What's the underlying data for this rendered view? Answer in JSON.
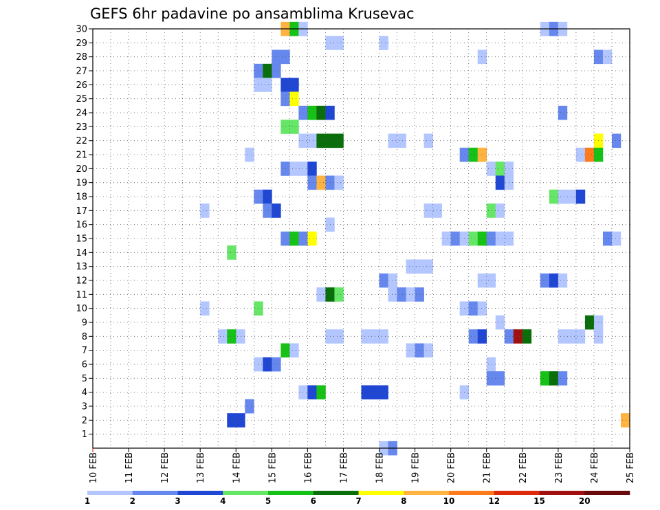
{
  "chart_data": {
    "type": "heatmap",
    "title": "GEFS 6hr padavine po ansamblima Krusevac",
    "xlabel": "",
    "ylabel": "",
    "x_ticks": [
      "10 FEB",
      "11 FEB",
      "12 FEB",
      "13 FEB",
      "14 FEB",
      "15 FEB",
      "16 FEB",
      "17 FEB",
      "18 FEB",
      "19 FEB",
      "20 FEB",
      "21 FEB",
      "22 FEB",
      "23 FEB",
      "24 FEB",
      "25 FEB"
    ],
    "x_start_day": 10,
    "x_end_day": 25,
    "y_ticks": [
      1,
      2,
      3,
      4,
      5,
      6,
      7,
      8,
      9,
      10,
      11,
      12,
      13,
      14,
      15,
      16,
      17,
      18,
      19,
      20,
      21,
      22,
      23,
      24,
      25,
      26,
      27,
      28,
      29,
      30
    ],
    "ylim": [
      0,
      30
    ],
    "grid": "dotted",
    "step_hours": 6,
    "legend": {
      "position": "bottom",
      "colors": [
        "#b3c6ff",
        "#6688ee",
        "#1f47d4",
        "#66e666",
        "#17c217",
        "#0a6e0a",
        "#ffff00",
        "#ffb340",
        "#ff7a1a",
        "#dd2a0a",
        "#a11010",
        "#6b0a0a"
      ],
      "labels": [
        "1",
        "2",
        "3",
        "4",
        "5",
        "6",
        "7",
        "8",
        "10",
        "12",
        "15",
        "20"
      ]
    },
    "cells": [
      {
        "member": 30,
        "day": 15.25,
        "level": 8
      },
      {
        "member": 30,
        "day": 15.5,
        "level": 5
      },
      {
        "member": 30,
        "day": 15.75,
        "level": 1
      },
      {
        "member": 30,
        "day": 22.5,
        "level": 1
      },
      {
        "member": 30,
        "day": 22.75,
        "level": 2
      },
      {
        "member": 30,
        "day": 23.0,
        "level": 1
      },
      {
        "member": 29,
        "day": 16.5,
        "level": 1
      },
      {
        "member": 29,
        "day": 16.75,
        "level": 1
      },
      {
        "member": 29,
        "day": 18.0,
        "level": 1
      },
      {
        "member": 28,
        "day": 15.0,
        "level": 2
      },
      {
        "member": 28,
        "day": 15.25,
        "level": 2
      },
      {
        "member": 28,
        "day": 20.75,
        "level": 1
      },
      {
        "member": 28,
        "day": 24.0,
        "level": 2
      },
      {
        "member": 28,
        "day": 24.25,
        "level": 1
      },
      {
        "member": 27,
        "day": 14.5,
        "level": 2
      },
      {
        "member": 27,
        "day": 14.75,
        "level": 6
      },
      {
        "member": 27,
        "day": 15.0,
        "level": 2
      },
      {
        "member": 26,
        "day": 14.5,
        "level": 1
      },
      {
        "member": 26,
        "day": 14.75,
        "level": 1
      },
      {
        "member": 26,
        "day": 15.25,
        "level": 3
      },
      {
        "member": 26,
        "day": 15.5,
        "level": 3
      },
      {
        "member": 25,
        "day": 15.25,
        "level": 2
      },
      {
        "member": 25,
        "day": 15.5,
        "level": 7
      },
      {
        "member": 24,
        "day": 15.75,
        "level": 2
      },
      {
        "member": 24,
        "day": 16.0,
        "level": 5
      },
      {
        "member": 24,
        "day": 16.25,
        "level": 6
      },
      {
        "member": 24,
        "day": 16.5,
        "level": 3
      },
      {
        "member": 24,
        "day": 23.0,
        "level": 2
      },
      {
        "member": 23,
        "day": 15.25,
        "level": 4
      },
      {
        "member": 23,
        "day": 15.5,
        "level": 4
      },
      {
        "member": 22,
        "day": 15.75,
        "level": 1
      },
      {
        "member": 22,
        "day": 16.0,
        "level": 1
      },
      {
        "member": 22,
        "day": 16.25,
        "level": 6
      },
      {
        "member": 22,
        "day": 16.5,
        "level": 6
      },
      {
        "member": 22,
        "day": 16.75,
        "level": 6
      },
      {
        "member": 22,
        "day": 18.25,
        "level": 1
      },
      {
        "member": 22,
        "day": 18.5,
        "level": 1
      },
      {
        "member": 22,
        "day": 19.25,
        "level": 1
      },
      {
        "member": 22,
        "day": 24.0,
        "level": 7
      },
      {
        "member": 22,
        "day": 24.5,
        "level": 2
      },
      {
        "member": 21,
        "day": 14.25,
        "level": 1
      },
      {
        "member": 21,
        "day": 20.25,
        "level": 2
      },
      {
        "member": 21,
        "day": 20.5,
        "level": 5
      },
      {
        "member": 21,
        "day": 20.75,
        "level": 8
      },
      {
        "member": 21,
        "day": 23.5,
        "level": 1
      },
      {
        "member": 21,
        "day": 23.75,
        "level": 9
      },
      {
        "member": 21,
        "day": 24.0,
        "level": 5
      },
      {
        "member": 20,
        "day": 15.25,
        "level": 2
      },
      {
        "member": 20,
        "day": 15.5,
        "level": 1
      },
      {
        "member": 20,
        "day": 15.75,
        "level": 1
      },
      {
        "member": 20,
        "day": 16.0,
        "level": 3
      },
      {
        "member": 20,
        "day": 21.0,
        "level": 1
      },
      {
        "member": 20,
        "day": 21.25,
        "level": 4
      },
      {
        "member": 20,
        "day": 21.5,
        "level": 1
      },
      {
        "member": 19,
        "day": 16.0,
        "level": 2
      },
      {
        "member": 19,
        "day": 16.25,
        "level": 8
      },
      {
        "member": 19,
        "day": 16.5,
        "level": 2
      },
      {
        "member": 19,
        "day": 16.75,
        "level": 1
      },
      {
        "member": 19,
        "day": 21.25,
        "level": 3
      },
      {
        "member": 19,
        "day": 21.5,
        "level": 1
      },
      {
        "member": 18,
        "day": 14.5,
        "level": 2
      },
      {
        "member": 18,
        "day": 14.75,
        "level": 3
      },
      {
        "member": 18,
        "day": 22.75,
        "level": 4
      },
      {
        "member": 18,
        "day": 23.0,
        "level": 1
      },
      {
        "member": 18,
        "day": 23.25,
        "level": 1
      },
      {
        "member": 18,
        "day": 23.5,
        "level": 3
      },
      {
        "member": 17,
        "day": 13.0,
        "level": 1
      },
      {
        "member": 17,
        "day": 14.75,
        "level": 2
      },
      {
        "member": 17,
        "day": 15.0,
        "level": 3
      },
      {
        "member": 17,
        "day": 19.25,
        "level": 1
      },
      {
        "member": 17,
        "day": 19.5,
        "level": 1
      },
      {
        "member": 17,
        "day": 21.0,
        "level": 4
      },
      {
        "member": 17,
        "day": 21.25,
        "level": 1
      },
      {
        "member": 16,
        "day": 16.5,
        "level": 1
      },
      {
        "member": 15,
        "day": 15.25,
        "level": 2
      },
      {
        "member": 15,
        "day": 15.5,
        "level": 5
      },
      {
        "member": 15,
        "day": 15.75,
        "level": 2
      },
      {
        "member": 15,
        "day": 16.0,
        "level": 7
      },
      {
        "member": 15,
        "day": 19.75,
        "level": 1
      },
      {
        "member": 15,
        "day": 20.0,
        "level": 2
      },
      {
        "member": 15,
        "day": 20.25,
        "level": 1
      },
      {
        "member": 15,
        "day": 20.5,
        "level": 4
      },
      {
        "member": 15,
        "day": 20.75,
        "level": 5
      },
      {
        "member": 15,
        "day": 21.0,
        "level": 2
      },
      {
        "member": 15,
        "day": 21.25,
        "level": 1
      },
      {
        "member": 15,
        "day": 21.5,
        "level": 1
      },
      {
        "member": 15,
        "day": 24.25,
        "level": 2
      },
      {
        "member": 15,
        "day": 24.5,
        "level": 1
      },
      {
        "member": 14,
        "day": 13.75,
        "level": 4
      },
      {
        "member": 13,
        "day": 18.75,
        "level": 1
      },
      {
        "member": 13,
        "day": 19.0,
        "level": 1
      },
      {
        "member": 13,
        "day": 19.25,
        "level": 1
      },
      {
        "member": 12,
        "day": 18.0,
        "level": 2
      },
      {
        "member": 12,
        "day": 18.25,
        "level": 1
      },
      {
        "member": 12,
        "day": 20.75,
        "level": 1
      },
      {
        "member": 12,
        "day": 21.0,
        "level": 1
      },
      {
        "member": 12,
        "day": 22.5,
        "level": 2
      },
      {
        "member": 12,
        "day": 22.75,
        "level": 3
      },
      {
        "member": 12,
        "day": 23.0,
        "level": 1
      },
      {
        "member": 11,
        "day": 16.25,
        "level": 1
      },
      {
        "member": 11,
        "day": 16.5,
        "level": 6
      },
      {
        "member": 11,
        "day": 16.75,
        "level": 4
      },
      {
        "member": 11,
        "day": 18.25,
        "level": 1
      },
      {
        "member": 11,
        "day": 18.5,
        "level": 2
      },
      {
        "member": 11,
        "day": 18.75,
        "level": 1
      },
      {
        "member": 11,
        "day": 19.0,
        "level": 2
      },
      {
        "member": 10,
        "day": 13.0,
        "level": 1
      },
      {
        "member": 10,
        "day": 14.5,
        "level": 4
      },
      {
        "member": 10,
        "day": 20.25,
        "level": 1
      },
      {
        "member": 10,
        "day": 20.5,
        "level": 2
      },
      {
        "member": 10,
        "day": 20.75,
        "level": 1
      },
      {
        "member": 9,
        "day": 21.25,
        "level": 1
      },
      {
        "member": 9,
        "day": 23.75,
        "level": 6
      },
      {
        "member": 9,
        "day": 24.0,
        "level": 1
      },
      {
        "member": 8,
        "day": 13.5,
        "level": 1
      },
      {
        "member": 8,
        "day": 13.75,
        "level": 5
      },
      {
        "member": 8,
        "day": 14.0,
        "level": 1
      },
      {
        "member": 8,
        "day": 16.5,
        "level": 1
      },
      {
        "member": 8,
        "day": 16.75,
        "level": 1
      },
      {
        "member": 8,
        "day": 17.5,
        "level": 1
      },
      {
        "member": 8,
        "day": 17.75,
        "level": 1
      },
      {
        "member": 8,
        "day": 18.0,
        "level": 1
      },
      {
        "member": 8,
        "day": 20.5,
        "level": 2
      },
      {
        "member": 8,
        "day": 20.75,
        "level": 3
      },
      {
        "member": 8,
        "day": 21.5,
        "level": 2
      },
      {
        "member": 8,
        "day": 21.75,
        "level": 11
      },
      {
        "member": 8,
        "day": 22.0,
        "level": 6
      },
      {
        "member": 8,
        "day": 23.0,
        "level": 1
      },
      {
        "member": 8,
        "day": 23.25,
        "level": 1
      },
      {
        "member": 8,
        "day": 23.5,
        "level": 1
      },
      {
        "member": 8,
        "day": 24.0,
        "level": 1
      },
      {
        "member": 7,
        "day": 15.25,
        "level": 5
      },
      {
        "member": 7,
        "day": 15.5,
        "level": 1
      },
      {
        "member": 7,
        "day": 18.75,
        "level": 1
      },
      {
        "member": 7,
        "day": 19.0,
        "level": 2
      },
      {
        "member": 7,
        "day": 19.25,
        "level": 1
      },
      {
        "member": 6,
        "day": 14.5,
        "level": 1
      },
      {
        "member": 6,
        "day": 14.75,
        "level": 3
      },
      {
        "member": 6,
        "day": 15.0,
        "level": 2
      },
      {
        "member": 6,
        "day": 21.0,
        "level": 1
      },
      {
        "member": 5,
        "day": 21.0,
        "level": 2
      },
      {
        "member": 5,
        "day": 21.25,
        "level": 2
      },
      {
        "member": 5,
        "day": 22.5,
        "level": 5
      },
      {
        "member": 5,
        "day": 22.75,
        "level": 6
      },
      {
        "member": 5,
        "day": 23.0,
        "level": 2
      },
      {
        "member": 4,
        "day": 15.75,
        "level": 1
      },
      {
        "member": 4,
        "day": 16.0,
        "level": 3
      },
      {
        "member": 4,
        "day": 16.25,
        "level": 5
      },
      {
        "member": 4,
        "day": 17.5,
        "level": 3
      },
      {
        "member": 4,
        "day": 17.75,
        "level": 3
      },
      {
        "member": 4,
        "day": 18.0,
        "level": 3
      },
      {
        "member": 4,
        "day": 20.25,
        "level": 1
      },
      {
        "member": 3,
        "day": 14.25,
        "level": 2
      },
      {
        "member": 2,
        "day": 13.75,
        "level": 3
      },
      {
        "member": 2,
        "day": 14.0,
        "level": 3
      },
      {
        "member": 2,
        "day": 24.75,
        "level": 8
      },
      {
        "member": 0,
        "day": 18.0,
        "level": 1
      },
      {
        "member": 0,
        "day": 18.25,
        "level": 2
      }
    ]
  }
}
